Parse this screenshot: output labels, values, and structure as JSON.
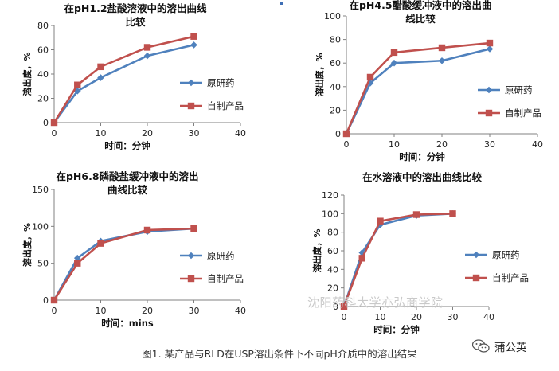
{
  "chart_data": [
    {
      "type": "line",
      "title": "在pH1.2盐酸溶液中的溶出曲线比较",
      "title_lines": [
        "在pH1.2盐酸溶液中的溶出曲线",
        "比较"
      ],
      "xlabel": "时间：分钟",
      "ylabel": "溶出度，%",
      "xlim": [
        0,
        40
      ],
      "ylim": [
        0,
        80
      ],
      "xticks": [
        0,
        10,
        20,
        30,
        40
      ],
      "yticks": [
        0,
        20,
        40,
        60,
        80
      ],
      "x": [
        0,
        5,
        10,
        20,
        30
      ],
      "series": [
        {
          "name": "原研药",
          "values": [
            0,
            26,
            37,
            55,
            64
          ],
          "color": "#4f81bd",
          "marker": "diamond"
        },
        {
          "name": "自制产品",
          "values": [
            0,
            31,
            46,
            62,
            71
          ],
          "color": "#c0504d",
          "marker": "square"
        }
      ],
      "legend": "right"
    },
    {
      "type": "line",
      "title": "在pH4.5醋酸缓冲液中的溶出曲线比较",
      "title_lines": [
        "在pH4.5醋酸缓冲液中的溶出曲",
        "线比较"
      ],
      "xlabel": "时间：分钟",
      "ylabel": "溶出度，%",
      "xlim": [
        0,
        40
      ],
      "ylim": [
        0,
        100
      ],
      "xticks": [
        0,
        10,
        20,
        30,
        40
      ],
      "yticks": [
        0,
        20,
        40,
        60,
        80,
        100
      ],
      "x": [
        0,
        5,
        10,
        20,
        30
      ],
      "series": [
        {
          "name": "原研药",
          "values": [
            0,
            43,
            60,
            62,
            72
          ],
          "color": "#4f81bd",
          "marker": "diamond"
        },
        {
          "name": "自制产品",
          "values": [
            0,
            48,
            69,
            73,
            77
          ],
          "color": "#c0504d",
          "marker": "square"
        }
      ],
      "legend": "right"
    },
    {
      "type": "line",
      "title": "在pH6.8磷酸盐缓冲液中的溶出曲线比较",
      "title_lines": [
        "在pH6.8磷酸盐缓冲液中的溶出",
        "曲线比较"
      ],
      "xlabel": "时间：mins",
      "ylabel": "溶出度，%",
      "xlim": [
        0,
        40
      ],
      "ylim": [
        0,
        150
      ],
      "xticks": [
        0,
        10,
        20,
        30,
        40
      ],
      "yticks": [
        0,
        50,
        100,
        150
      ],
      "x": [
        0,
        5,
        10,
        20,
        30
      ],
      "series": [
        {
          "name": "原研药",
          "values": [
            0,
            57,
            80,
            93,
            97
          ],
          "color": "#4f81bd",
          "marker": "diamond"
        },
        {
          "name": "自制产品",
          "values": [
            0,
            50,
            77,
            95,
            97
          ],
          "color": "#c0504d",
          "marker": "square"
        }
      ],
      "legend": "right"
    },
    {
      "type": "line",
      "title": "在水溶液中的溶出曲线比较",
      "title_lines": [
        "在水溶液中的溶出曲线比较"
      ],
      "xlabel": "时间：分钟",
      "ylabel": "溶出度，%",
      "xlim": [
        0,
        40
      ],
      "ylim": [
        0,
        120
      ],
      "xticks": [
        0,
        10,
        20,
        30,
        40
      ],
      "yticks": [
        0,
        20,
        40,
        60,
        80,
        100,
        120
      ],
      "x": [
        0,
        5,
        10,
        20,
        30
      ],
      "series": [
        {
          "name": "原研药",
          "values": [
            0,
            58,
            88,
            98,
            100
          ],
          "color": "#4f81bd",
          "marker": "diamond"
        },
        {
          "name": "自制产品",
          "values": [
            0,
            52,
            92,
            99,
            100
          ],
          "color": "#c0504d",
          "marker": "square"
        }
      ],
      "legend": "right"
    }
  ],
  "caption": "图1. 某产品与RLD在USP溶出条件下不同pH介质中的溶出结果",
  "watermark": "沈阳药科大学亦弘商学院",
  "wechat_account": "蒲公英"
}
